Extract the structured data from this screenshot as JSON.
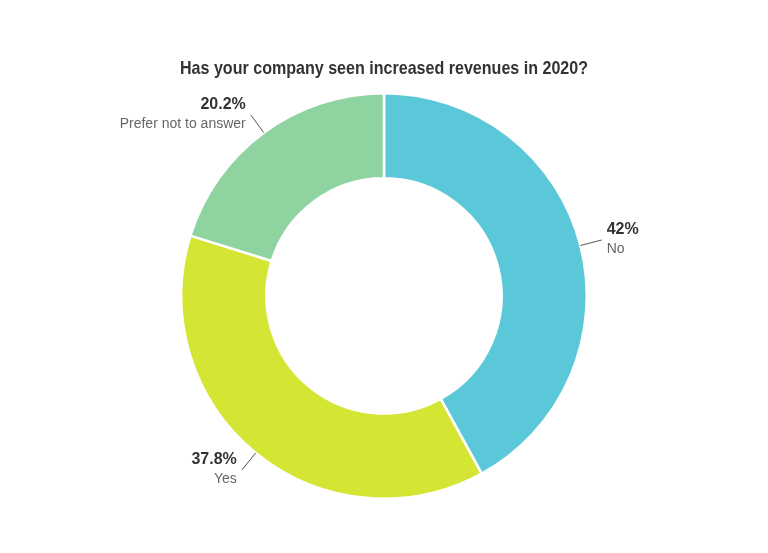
{
  "chart_data": {
    "type": "doughnut",
    "title": "Has your company seen increased revenues in 2020?",
    "categories": [
      "No",
      "Yes",
      "Prefer not to answer"
    ],
    "values": [
      42.0,
      37.8,
      20.2
    ],
    "value_labels": [
      "42%",
      "37.8%",
      "20.2%"
    ],
    "colors": [
      "#5bc8d9",
      "#d4e533",
      "#8fd4a0"
    ],
    "data_labels": true
  }
}
